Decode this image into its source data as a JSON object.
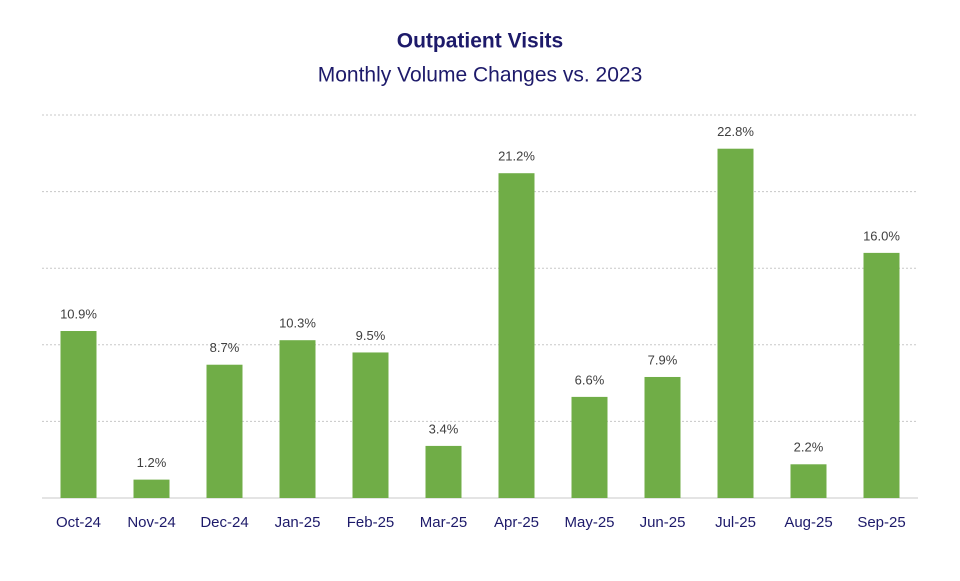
{
  "chart_data": {
    "type": "bar",
    "title": "Outpatient Visits",
    "subtitle": "Monthly Volume Changes vs. 2023",
    "categories": [
      "Oct-24",
      "Nov-24",
      "Dec-24",
      "Jan-25",
      "Feb-25",
      "Mar-25",
      "Apr-25",
      "May-25",
      "Jun-25",
      "Jul-25",
      "Aug-25",
      "Sep-25"
    ],
    "values": [
      10.9,
      1.2,
      8.7,
      10.3,
      9.5,
      3.4,
      21.2,
      6.6,
      7.9,
      22.8,
      2.2,
      16.0
    ],
    "value_labels": [
      "10.9%",
      "1.2%",
      "8.7%",
      "10.3%",
      "9.5%",
      "3.4%",
      "21.2%",
      "6.6%",
      "7.9%",
      "22.8%",
      "2.2%",
      "16.0%"
    ],
    "color": "#70ad47",
    "ylim": [
      0,
      25
    ],
    "yticks": [
      0,
      5,
      10,
      15,
      20,
      25
    ],
    "grid": true
  }
}
